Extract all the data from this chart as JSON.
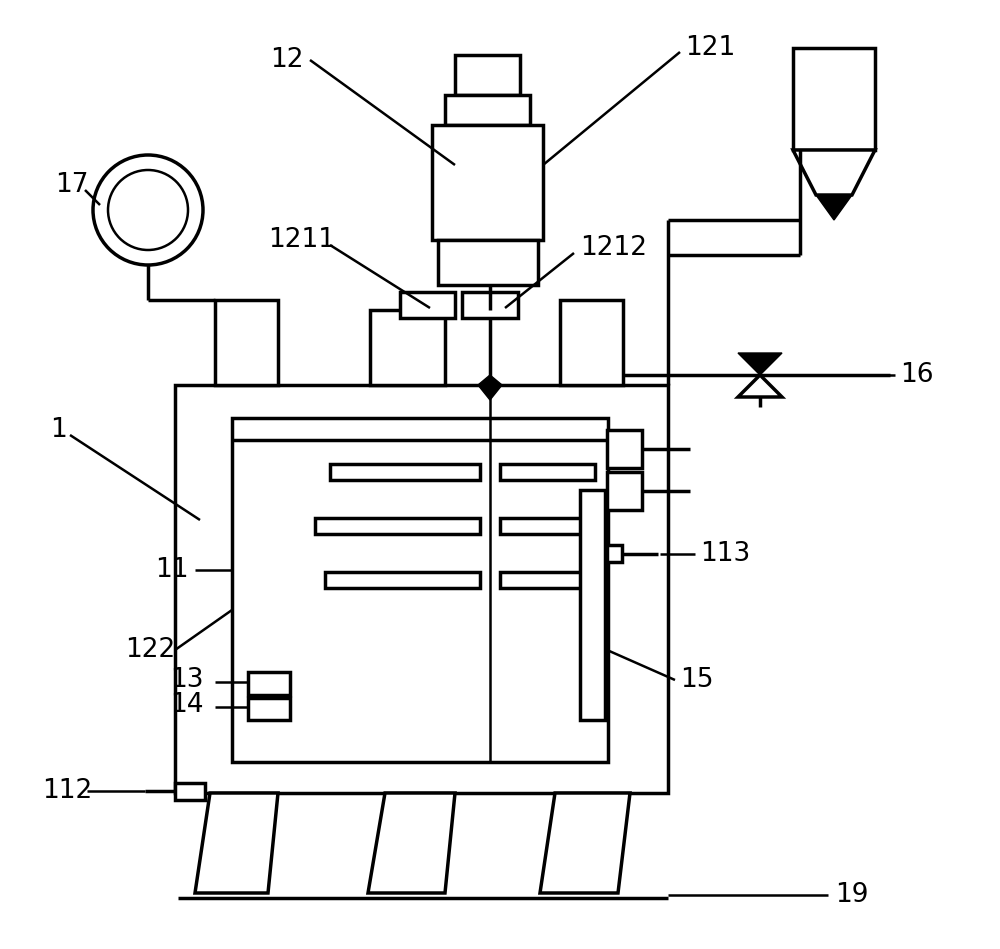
{
  "bg_color": "#ffffff",
  "lc": "#000000",
  "lw": 2.5,
  "lw_thin": 1.8,
  "fs": 19
}
